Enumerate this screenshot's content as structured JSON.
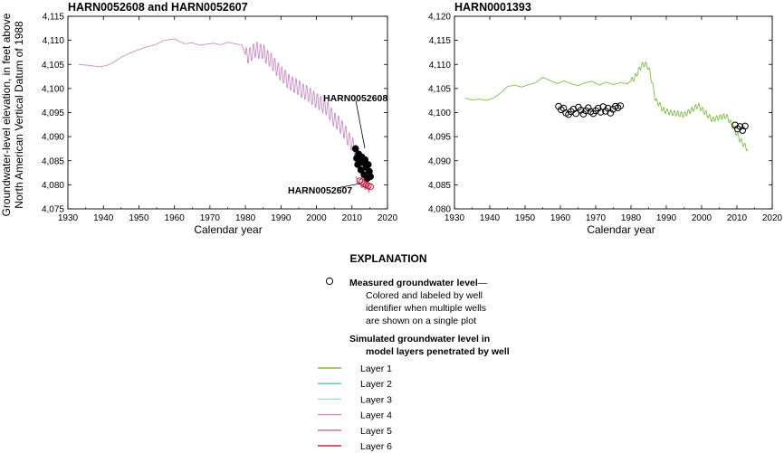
{
  "ylabel_line1": "Groundwater-level elevation, in feet above",
  "ylabel_line2": "North American Vertical Datum of 1988",
  "layer_colors": {
    "layer1": "#7ac143",
    "layer2": "#5fc0ae",
    "layer3": "#9be0c9",
    "layer4": "#c98fc6",
    "layer5": "#e0559c",
    "layer6": "#d0203a"
  },
  "chart_data": [
    {
      "type": "line",
      "title": "HARN0052608 and HARN0052607",
      "xlabel": "Calendar year",
      "xlim": [
        1930,
        2020
      ],
      "ylim": [
        4075,
        4115
      ],
      "xticks": [
        "1930",
        "1940",
        "1950",
        "1960",
        "1970",
        "1980",
        "1990",
        "2000",
        "2010",
        "2020"
      ],
      "yticks": [
        "4,075",
        "4,080",
        "4,085",
        "4,090",
        "4,095",
        "4,100",
        "4,105",
        "4,110",
        "4,115"
      ],
      "annotations": [
        "HARN0052608",
        "HARN0052607"
      ],
      "series": [
        {
          "layer": "Layer 4",
          "x": [
            1933,
            1936,
            1939,
            1941,
            1943,
            1945,
            1947,
            1949,
            1952,
            1955,
            1957,
            1959,
            1960,
            1961,
            1963,
            1965,
            1967,
            1969,
            1971,
            1973,
            1975,
            1977,
            1979,
            1980,
            1981,
            1982,
            1983,
            1984,
            1985,
            1986,
            1987,
            1988,
            1989,
            1990,
            1991,
            1992,
            1993,
            1994,
            1995,
            1996,
            1997,
            1998,
            1999,
            2000,
            2001,
            2002,
            2003,
            2004,
            2005,
            2006,
            2007,
            2008,
            2009,
            2010,
            2011,
            2012,
            2013,
            2014,
            2015
          ],
          "y": [
            4105,
            4104.8,
            4104.5,
            4104.8,
            4105.5,
            4106.5,
            4107.2,
            4107.8,
            4108.6,
            4109.2,
            4110,
            4110.2,
            4110.3,
            4109.9,
            4109.3,
            4109.5,
            4109,
            4109.2,
            4109.4,
            4109.1,
            4109.6,
            4109.3,
            4109,
            4107,
            4106.8,
            4107.5,
            4108.2,
            4107.6,
            4107.8,
            4106.5,
            4106,
            4105,
            4104,
            4103.1,
            4102.5,
            4101.5,
            4101,
            4100.6,
            4100.2,
            4099.5,
            4099.2,
            4098.7,
            4098,
            4097.5,
            4097,
            4096.3,
            4096,
            4094.7,
            4093.5,
            4093,
            4092,
            4091,
            4089.5,
            4088.5,
            4087.3,
            4084.5,
            4082.5,
            4080.5,
            4079.8
          ],
          "seasonal_amplitude": 3.5
        },
        {
          "layer": "Layer 5",
          "x": [
            2011,
            2012,
            2013,
            2014,
            2015
          ],
          "y": [
            4081.5,
            4080.3,
            4079.6,
            4079.3,
            4079.2
          ],
          "seasonal_amplitude": 0.8
        }
      ],
      "measured": [
        {
          "well": "HARN0052608",
          "x": [
            2011.0,
            2011.3,
            2011.6,
            2011.9,
            2012.2,
            2012.5,
            2012.8,
            2013.1,
            2013.4,
            2013.7,
            2014.0,
            2014.3,
            2014.6,
            2014.9,
            2015.2
          ],
          "y": [
            4087.5,
            4085.5,
            4084.2,
            4086.4,
            4085.3,
            4083.1,
            4085.8,
            4084.6,
            4082.1,
            4085.2,
            4083.6,
            4081.3,
            4084.2,
            4082.8,
            4081.7
          ]
        },
        {
          "well": "HARN0052607",
          "x": [
            2012.2,
            2012.8,
            2013.4,
            2014.0,
            2014.6,
            2015.2
          ],
          "y": [
            4080.8,
            4080.6,
            4080.2,
            4080.0,
            4079.8,
            4079.6
          ]
        }
      ]
    },
    {
      "type": "line",
      "title": "HARN0001393",
      "xlabel": "Calendar year",
      "xlim": [
        1930,
        2020
      ],
      "ylim": [
        4080,
        4120
      ],
      "xticks": [
        "1930",
        "1940",
        "1950",
        "1960",
        "1970",
        "1980",
        "1990",
        "2000",
        "2010",
        "2020"
      ],
      "yticks": [
        "4,080",
        "4,085",
        "4,090",
        "4,095",
        "4,100",
        "4,105",
        "4,110",
        "4,115",
        "4,120"
      ],
      "series": [
        {
          "layer": "Layer 1",
          "x": [
            1933,
            1935,
            1937,
            1939,
            1941,
            1943,
            1945,
            1947,
            1949,
            1951,
            1953,
            1955,
            1957,
            1959,
            1961,
            1963,
            1965,
            1967,
            1969,
            1971,
            1973,
            1975,
            1977,
            1979,
            1981,
            1983,
            1984,
            1985,
            1986,
            1987,
            1988,
            1989,
            1991,
            1993,
            1995,
            1997,
            1999,
            2001,
            2003,
            2005,
            2007,
            2009,
            2010,
            2011,
            2012,
            2013
          ],
          "y": [
            4103,
            4102.6,
            4102.8,
            4102.5,
            4103,
            4104,
            4105.4,
            4105.7,
            4105.3,
            4105.8,
            4106.2,
            4107.3,
            4106.7,
            4106,
            4106.6,
            4106,
            4105.6,
            4106.2,
            4106.5,
            4105.7,
            4106.3,
            4105.8,
            4106.2,
            4106,
            4107.2,
            4109.8,
            4110.1,
            4109.3,
            4106.2,
            4102.5,
            4101.8,
            4100.6,
            4100,
            4099.8,
            4099.5,
            4100.4,
            4101.5,
            4100,
            4098.5,
            4099,
            4099.3,
            4097,
            4095.5,
            4094.2,
            4093.3,
            4092.4
          ],
          "seasonal_amplitude": 1.2
        }
      ],
      "measured": [
        {
          "well": "HARN0001393",
          "x": [
            1959.5,
            1960.2,
            1960.9,
            1961.6,
            1962.3,
            1963,
            1963.7,
            1964.4,
            1965.1,
            1965.8,
            1966.5,
            1967.2,
            1967.9,
            1968.6,
            1969.3,
            1970,
            1970.7,
            1971.4,
            1972.1,
            1972.8,
            1973.5,
            1974.2,
            1974.9,
            1975.6,
            1976.3,
            1977,
            2009.5,
            2010.2,
            2010.9,
            2011.6,
            2012.3
          ],
          "y": [
            4101.3,
            4100.6,
            4100.9,
            4099.9,
            4099.6,
            4100.2,
            4100.7,
            4099.8,
            4101.1,
            4100.5,
            4099.7,
            4100.4,
            4101,
            4100.2,
            4099.8,
            4100.4,
            4100.9,
            4100.1,
            4101.2,
            4100.3,
            4100.9,
            4099.9,
            4100.7,
            4101.3,
            4101,
            4101.4,
            4097.4,
            4096.6,
            4097.1,
            4096.3,
            4097.2
          ]
        }
      ]
    }
  ],
  "explanation": {
    "heading": "EXPLANATION",
    "measured_title": "Measured groundwater level",
    "measured_dash": "—",
    "measured_desc": [
      "Colored and labeled by well",
      "identifier when multiple wells",
      "are shown on a single plot"
    ],
    "simulated_title": [
      "Simulated groundwater level in",
      "model layers penetrated by well"
    ],
    "layers": [
      {
        "label": "Layer 1",
        "color": "#7ac143"
      },
      {
        "label": "Layer 2",
        "color": "#5fc0ae"
      },
      {
        "label": "Layer 3",
        "color": "#9be0c9"
      },
      {
        "label": "Layer 4",
        "color": "#c98fc6"
      },
      {
        "label": "Layer 5",
        "color": "#e0559c"
      },
      {
        "label": "Layer 6",
        "color": "#d0203a"
      }
    ]
  }
}
